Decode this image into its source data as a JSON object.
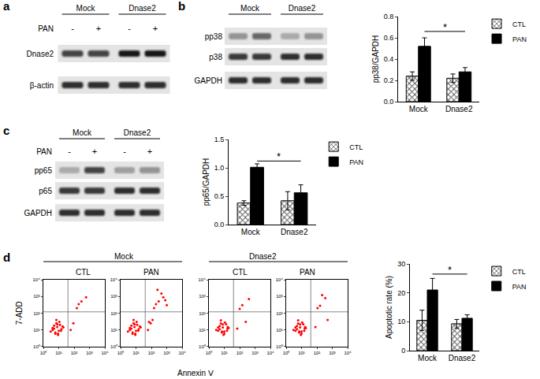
{
  "chart_data": [
    {
      "type": "blot",
      "panel": "a",
      "groups": [
        "Mock",
        "Dnase2"
      ],
      "treatment": "PAN",
      "lanes": [
        "-",
        "+",
        "-",
        "+"
      ],
      "rows": [
        {
          "name": "Dnase2",
          "intensity": [
            0.75,
            0.75,
            0.95,
            0.95
          ]
        },
        {
          "name": "β-actin",
          "intensity": [
            0.85,
            0.85,
            0.85,
            0.85
          ]
        }
      ]
    },
    {
      "type": "blot",
      "panel": "b",
      "groups": [
        "Mock",
        "Dnase2"
      ],
      "rows": [
        {
          "name": "pp38",
          "intensity": [
            0.35,
            0.6,
            0.25,
            0.35
          ]
        },
        {
          "name": "p38",
          "intensity": [
            0.8,
            0.8,
            0.85,
            0.85
          ]
        },
        {
          "name": "GAPDH",
          "intensity": [
            0.85,
            0.85,
            0.85,
            0.85
          ]
        }
      ]
    },
    {
      "type": "bar",
      "ylabel": "pp38/GAPDH",
      "categories": [
        "Mock",
        "Dnase2"
      ],
      "series": [
        {
          "name": "CTL",
          "color": "#555555",
          "marker": "hatched",
          "values": [
            0.24,
            0.22
          ],
          "errors": [
            0.04,
            0.04
          ]
        },
        {
          "name": "PAN",
          "color": "#000000",
          "values": [
            0.52,
            0.28
          ],
          "errors": [
            0.08,
            0.04
          ]
        }
      ],
      "ylim": [
        0,
        0.8
      ],
      "yticks": [
        {
          "value": 0,
          "label": "0.0"
        },
        0.2,
        0.4,
        0.6,
        0.8
      ],
      "legend": "upper right",
      "significance": {
        "between": [
          "Mock",
          "Dnase2"
        ],
        "series": "PAN",
        "y": 0.66,
        "label": "*"
      }
    },
    {
      "type": "blot",
      "panel": "c",
      "groups": [
        "Mock",
        "Dnase2"
      ],
      "treatment": "PAN",
      "lanes": [
        "-",
        "+",
        "-",
        "+"
      ],
      "rows": [
        {
          "name": "pp65",
          "intensity": [
            0.25,
            0.75,
            0.3,
            0.35
          ]
        },
        {
          "name": "p65",
          "intensity": [
            0.8,
            0.8,
            0.85,
            0.85
          ]
        },
        {
          "name": "GAPDH",
          "intensity": [
            0.85,
            0.85,
            0.85,
            0.85
          ]
        }
      ]
    },
    {
      "type": "bar",
      "ylabel": "pp65/GAPDH",
      "categories": [
        "Mock",
        "Dnase2"
      ],
      "series": [
        {
          "name": "CTL",
          "color": "#555555",
          "marker": "hatched",
          "values": [
            0.38,
            0.42
          ],
          "errors": [
            0.04,
            0.16
          ]
        },
        {
          "name": "PAN",
          "color": "#000000",
          "values": [
            1.01,
            0.56
          ],
          "errors": [
            0.06,
            0.14
          ]
        }
      ],
      "ylim": [
        0,
        1.5
      ],
      "yticks": [
        {
          "value": 0,
          "label": "0.0"
        },
        0.5,
        {
          "value": 1,
          "label": "1.0"
        },
        1.5
      ],
      "legend": "upper right",
      "significance": {
        "between": [
          "Mock",
          "Dnase2"
        ],
        "series": "PAN",
        "y": 1.12,
        "label": "*"
      }
    },
    {
      "type": "scatter",
      "panel": "d",
      "log": true,
      "groups": [
        "Mock",
        "Dnase2"
      ],
      "xlabel": "Annexin Ⅴ",
      "ylabel": "7-ADD",
      "color": "#ff0000",
      "xlim": [
        1,
        10000
      ],
      "ylim": [
        1,
        10000
      ],
      "xticks": [
        {
          "value": 1,
          "label": "10⁰"
        },
        {
          "value": 10,
          "label": "10¹"
        },
        {
          "value": 100,
          "label": "10²"
        },
        {
          "value": 1000,
          "label": "10³"
        },
        {
          "value": 10000,
          "label": "10⁴"
        }
      ],
      "yticks": [
        {
          "value": 1,
          "label": "10⁰"
        },
        {
          "value": 10,
          "label": "10¹"
        },
        {
          "value": 100,
          "label": "10²"
        },
        {
          "value": 1000,
          "label": "10³"
        },
        {
          "value": 10000,
          "label": "10⁴"
        }
      ],
      "gate": {
        "x": 40,
        "y": 120
      },
      "plots": [
        {
          "name": "CTL",
          "group": "Mock",
          "x": [
            3,
            5,
            6,
            8,
            4,
            10,
            12,
            7,
            9,
            15,
            5,
            6,
            20,
            11,
            8,
            4,
            14,
            18,
            7,
            9,
            60,
            90,
            150,
            300,
            600,
            200
          ],
          "y": [
            8,
            12,
            6,
            15,
            10,
            9,
            20,
            25,
            5,
            11,
            18,
            7,
            14,
            30,
            22,
            13,
            9,
            16,
            40,
            6,
            10,
            25,
            200,
            500,
            900,
            350
          ]
        },
        {
          "name": "PAN",
          "group": "Mock",
          "x": [
            3,
            5,
            6,
            8,
            4,
            10,
            12,
            7,
            9,
            15,
            5,
            6,
            20,
            11,
            8,
            4,
            14,
            18,
            7,
            9,
            60,
            90,
            150,
            300,
            600,
            200,
            120,
            450,
            800,
            250,
            70,
            1000
          ],
          "y": [
            8,
            12,
            6,
            15,
            10,
            9,
            20,
            25,
            5,
            11,
            18,
            7,
            14,
            30,
            22,
            13,
            9,
            16,
            40,
            6,
            10,
            25,
            200,
            500,
            900,
            350,
            40,
            1500,
            600,
            2500,
            30,
            300
          ]
        },
        {
          "name": "CTL",
          "group": "Dnase2",
          "x": [
            4,
            5,
            7,
            8,
            3,
            10,
            13,
            6,
            9,
            16,
            5,
            7,
            19,
            11,
            8,
            4,
            15,
            17,
            6,
            10,
            70,
            150,
            400,
            250,
            100
          ],
          "y": [
            9,
            11,
            7,
            14,
            10,
            8,
            22,
            24,
            5,
            12,
            17,
            8,
            13,
            28,
            21,
            14,
            9,
            15,
            38,
            6,
            12,
            300,
            700,
            30,
            180
          ]
        },
        {
          "name": "PAN",
          "group": "Dnase2",
          "x": [
            4,
            5,
            7,
            8,
            3,
            10,
            13,
            6,
            9,
            16,
            5,
            7,
            19,
            11,
            8,
            4,
            15,
            17,
            6,
            10,
            80,
            160,
            350,
            500,
            220,
            110
          ],
          "y": [
            9,
            11,
            7,
            14,
            10,
            8,
            22,
            24,
            5,
            12,
            17,
            8,
            13,
            28,
            21,
            14,
            9,
            15,
            38,
            6,
            15,
            280,
            800,
            40,
            1200,
            200
          ]
        }
      ]
    },
    {
      "type": "bar",
      "ylabel": "Apoptotic rate (%)",
      "categories": [
        "Mock",
        "Dnase2"
      ],
      "series": [
        {
          "name": "CTL",
          "color": "#555555",
          "marker": "hatched",
          "values": [
            10.5,
            9.3
          ],
          "errors": [
            3.5,
            1.5
          ]
        },
        {
          "name": "PAN",
          "color": "#000000",
          "values": [
            21,
            11.2
          ],
          "errors": [
            4,
            1.2
          ]
        }
      ],
      "ylim": [
        0,
        30
      ],
      "yticks": [
        0,
        10,
        20,
        30
      ],
      "legend": "upper right",
      "significance": {
        "between": [
          "Mock",
          "Dnase2"
        ],
        "series": "PAN",
        "y": 26.5,
        "label": "*"
      }
    }
  ]
}
